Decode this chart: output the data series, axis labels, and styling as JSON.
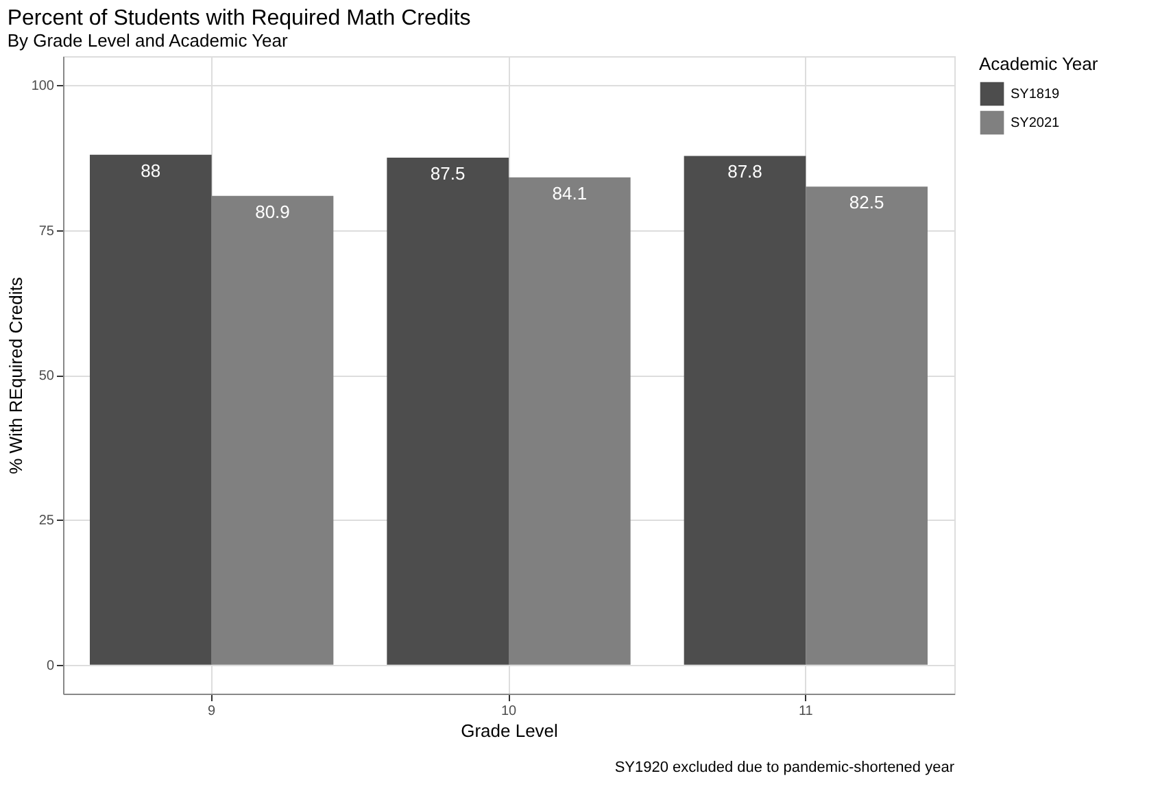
{
  "chart_data": {
    "type": "bar",
    "title": "Percent of Students with Required Math Credits",
    "subtitle": "By Grade Level and Academic Year",
    "xlabel": "Grade Level",
    "ylabel": "% With REquired Credits",
    "legend_title": "Academic Year",
    "categories": [
      "9",
      "10",
      "11"
    ],
    "series": [
      {
        "name": "SY1819",
        "color": "#4d4d4d",
        "values": [
          88,
          87.5,
          87.8
        ]
      },
      {
        "name": "SY2021",
        "color": "#808080",
        "values": [
          80.9,
          84.1,
          82.5
        ]
      }
    ],
    "ylim": [
      -5,
      105
    ],
    "yticks": [
      0,
      25,
      50,
      75,
      100
    ],
    "grid": true,
    "legend": "right",
    "data_labels": true,
    "annotations": [
      "SY1920 excluded due to pandemic-shortened year"
    ]
  }
}
